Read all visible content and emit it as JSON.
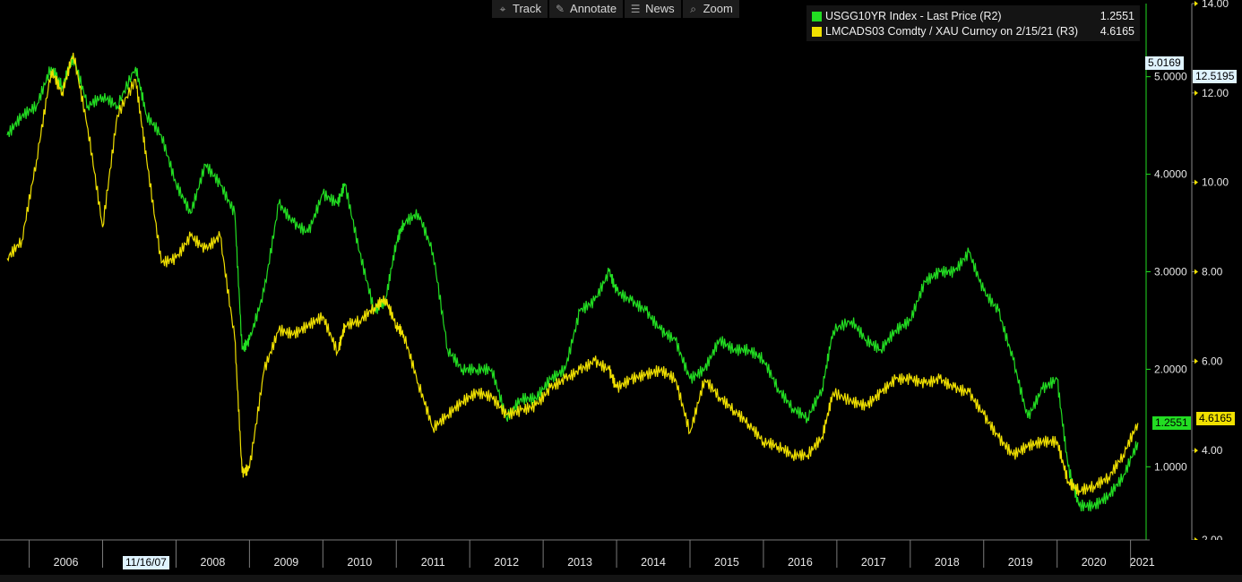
{
  "toolbar": {
    "items": [
      {
        "label": "Track",
        "icon": "crosshair-icon",
        "glyph": "⌖"
      },
      {
        "label": "Annotate",
        "icon": "pencil-icon",
        "glyph": "✎"
      },
      {
        "label": "News",
        "icon": "news-icon",
        "glyph": "☰"
      },
      {
        "label": "Zoom",
        "icon": "magnifier-icon",
        "glyph": "⌕"
      }
    ]
  },
  "legend": {
    "items": [
      {
        "name": "USGG10YR Index - Last Price (R2)",
        "value": "1.2551",
        "color": "#22dd22"
      },
      {
        "name": "LMCADS03 Comdty / XAU Curncy on 2/15/21 (R3)",
        "value": "4.6165",
        "color": "#f0e000"
      }
    ]
  },
  "tags": {
    "green_high": "5.0169",
    "yellow_high": "12.5195",
    "green_last": "1.2551",
    "yellow_last": "4.6165",
    "date_marker": "11/16/07"
  },
  "chart_data": {
    "type": "line",
    "x_range": [
      2005.7,
      2021.2
    ],
    "x_ticks": [
      "2006",
      "2007",
      "2008",
      "2009",
      "2010",
      "2011",
      "2012",
      "2013",
      "2014",
      "2015",
      "2016",
      "2017",
      "2018",
      "2019",
      "2020",
      "2021"
    ],
    "axes": [
      {
        "id": "R2",
        "ylim": [
          0.25,
          5.75
        ],
        "ticks": [
          "1.0000",
          "2.0000",
          "3.0000",
          "4.0000",
          "5.0000"
        ],
        "color": "#22dd22"
      },
      {
        "id": "R3",
        "ylim": [
          2.0,
          14.0
        ],
        "ticks": [
          "2.00",
          "4.00",
          "6.00",
          "8.00",
          "10.00",
          "12.00",
          "14.00"
        ],
        "color": "#f0e000"
      }
    ],
    "series": [
      {
        "name": "USGG10YR Index - Last Price (R2)",
        "axis": "R2",
        "color": "#22dd22",
        "x": [
          2005.7,
          2005.9,
          2006.1,
          2006.3,
          2006.45,
          2006.6,
          2006.8,
          2007.0,
          2007.2,
          2007.45,
          2007.6,
          2007.8,
          2008.0,
          2008.2,
          2008.4,
          2008.6,
          2008.8,
          2008.9,
          2009.0,
          2009.2,
          2009.4,
          2009.6,
          2009.8,
          2010.0,
          2010.2,
          2010.3,
          2010.5,
          2010.7,
          2010.85,
          2011.0,
          2011.1,
          2011.3,
          2011.5,
          2011.7,
          2011.9,
          2012.1,
          2012.3,
          2012.5,
          2012.7,
          2012.9,
          2013.1,
          2013.3,
          2013.5,
          2013.7,
          2013.9,
          2014.0,
          2014.2,
          2014.4,
          2014.6,
          2014.8,
          2015.0,
          2015.2,
          2015.4,
          2015.6,
          2015.8,
          2016.0,
          2016.2,
          2016.4,
          2016.6,
          2016.8,
          2016.95,
          2017.2,
          2017.4,
          2017.6,
          2017.8,
          2018.0,
          2018.2,
          2018.4,
          2018.6,
          2018.8,
          2019.0,
          2019.2,
          2019.4,
          2019.6,
          2019.8,
          2020.0,
          2020.15,
          2020.3,
          2020.5,
          2020.7,
          2020.9,
          2021.1
        ],
        "y": [
          4.4,
          4.6,
          4.7,
          5.1,
          4.9,
          5.2,
          4.7,
          4.8,
          4.7,
          5.1,
          4.6,
          4.4,
          3.9,
          3.6,
          4.1,
          3.9,
          3.6,
          2.2,
          2.3,
          2.8,
          3.7,
          3.5,
          3.4,
          3.8,
          3.7,
          3.9,
          3.2,
          2.6,
          2.7,
          3.3,
          3.5,
          3.6,
          3.2,
          2.2,
          2.0,
          2.0,
          2.0,
          1.5,
          1.7,
          1.7,
          1.9,
          2.0,
          2.6,
          2.7,
          3.0,
          2.8,
          2.7,
          2.6,
          2.4,
          2.3,
          1.9,
          2.0,
          2.3,
          2.2,
          2.2,
          2.1,
          1.8,
          1.6,
          1.5,
          1.8,
          2.4,
          2.5,
          2.3,
          2.2,
          2.4,
          2.5,
          2.9,
          3.0,
          3.0,
          3.2,
          2.8,
          2.6,
          2.1,
          1.5,
          1.8,
          1.9,
          1.0,
          0.6,
          0.6,
          0.7,
          0.9,
          1.25
        ]
      },
      {
        "name": "LMCADS03 Comdty / XAU Curncy on 2/15/21 (R3)",
        "axis": "R3",
        "color": "#f0e000",
        "x": [
          2005.7,
          2005.9,
          2006.1,
          2006.3,
          2006.45,
          2006.6,
          2006.8,
          2007.0,
          2007.2,
          2007.45,
          2007.6,
          2007.8,
          2008.0,
          2008.2,
          2008.4,
          2008.6,
          2008.8,
          2008.9,
          2009.0,
          2009.2,
          2009.4,
          2009.6,
          2009.8,
          2010.0,
          2010.2,
          2010.3,
          2010.5,
          2010.7,
          2010.85,
          2011.0,
          2011.1,
          2011.3,
          2011.5,
          2011.7,
          2011.9,
          2012.1,
          2012.3,
          2012.5,
          2012.7,
          2012.9,
          2013.1,
          2013.3,
          2013.5,
          2013.7,
          2013.9,
          2014.0,
          2014.2,
          2014.4,
          2014.6,
          2014.8,
          2015.0,
          2015.2,
          2015.4,
          2015.6,
          2015.8,
          2016.0,
          2016.2,
          2016.4,
          2016.6,
          2016.8,
          2016.95,
          2017.2,
          2017.4,
          2017.6,
          2017.8,
          2018.0,
          2018.2,
          2018.4,
          2018.6,
          2018.8,
          2019.0,
          2019.2,
          2019.4,
          2019.6,
          2019.8,
          2020.0,
          2020.15,
          2020.3,
          2020.5,
          2020.7,
          2020.9,
          2021.1
        ],
        "y": [
          8.3,
          8.7,
          10.5,
          12.5,
          12.0,
          12.9,
          11.2,
          9.0,
          11.5,
          12.3,
          10.5,
          8.2,
          8.3,
          8.8,
          8.5,
          8.8,
          6.5,
          3.5,
          3.6,
          5.8,
          6.7,
          6.6,
          6.8,
          7.0,
          6.2,
          6.8,
          6.9,
          7.2,
          7.4,
          6.8,
          6.6,
          5.5,
          4.5,
          4.8,
          5.1,
          5.3,
          5.2,
          4.8,
          4.9,
          5.0,
          5.4,
          5.6,
          5.8,
          6.0,
          5.8,
          5.4,
          5.6,
          5.7,
          5.8,
          5.6,
          4.4,
          5.6,
          5.2,
          4.9,
          4.6,
          4.2,
          4.1,
          3.9,
          3.9,
          4.3,
          5.3,
          5.1,
          5.0,
          5.3,
          5.6,
          5.6,
          5.5,
          5.6,
          5.4,
          5.3,
          4.8,
          4.3,
          3.9,
          4.1,
          4.2,
          4.2,
          3.3,
          3.1,
          3.2,
          3.4,
          3.9,
          4.6165
        ]
      }
    ]
  }
}
